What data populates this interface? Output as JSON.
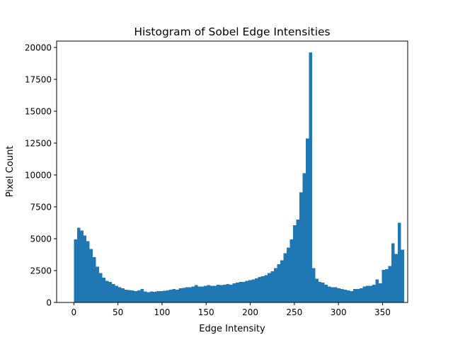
{
  "chart_data": {
    "type": "bar",
    "title": "Histogram of Sobel Edge Intensities",
    "xlabel": "Edge Intensity",
    "ylabel": "Pixel Count",
    "xlim": [
      -19.5,
      378.5
    ],
    "ylim": [
      0,
      20500
    ],
    "x_ticks": [
      0,
      50,
      100,
      150,
      200,
      250,
      300,
      350
    ],
    "y_ticks": [
      0,
      2500,
      5000,
      7500,
      10000,
      12500,
      15000,
      17500,
      20000
    ],
    "bin_start": 0,
    "bin_width": 3.6,
    "values": [
      4950,
      5850,
      5650,
      5250,
      4800,
      4200,
      3550,
      2800,
      2300,
      1950,
      1700,
      1600,
      1450,
      1300,
      1200,
      1100,
      1000,
      980,
      950,
      900,
      950,
      1050,
      850,
      800,
      850,
      820,
      900,
      900,
      920,
      950,
      1000,
      1050,
      1000,
      1100,
      1150,
      1200,
      1200,
      1250,
      1350,
      1250,
      1250,
      1300,
      1350,
      1300,
      1300,
      1400,
      1350,
      1400,
      1450,
      1400,
      1500,
      1550,
      1600,
      1600,
      1700,
      1750,
      1800,
      1900,
      2000,
      2050,
      2150,
      2300,
      2450,
      2700,
      3000,
      3300,
      3850,
      4300,
      4950,
      6050,
      6500,
      8650,
      10150,
      12850,
      19600,
      2700,
      1850,
      1600,
      1550,
      1400,
      1250,
      1200,
      1200,
      1100,
      1050,
      1000,
      950,
      900,
      1050,
      1050,
      1100,
      1250,
      1300,
      1300,
      1400,
      1800,
      1500,
      2550,
      2600,
      2850,
      4650,
      3800,
      6250,
      4150
    ],
    "color": "#1f77b4",
    "grid": false,
    "legend": "none"
  }
}
